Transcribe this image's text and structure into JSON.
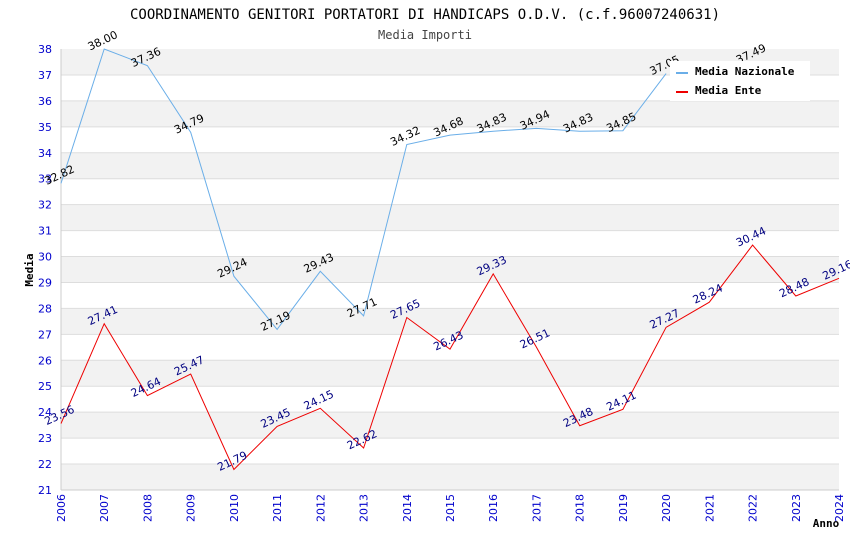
{
  "chart_data": {
    "type": "line",
    "title": "COORDINAMENTO GENITORI PORTATORI DI HANDICAPS O.D.V. (c.f.96007240631)",
    "subtitle": "Media Importi",
    "xlabel": "Anno",
    "ylabel": "Media",
    "ylim": [
      21,
      38
    ],
    "yticks": [
      "21",
      "22",
      "23",
      "24",
      "25",
      "26",
      "27",
      "28",
      "29",
      "30",
      "31",
      "32",
      "33",
      "34",
      "35",
      "36",
      "37",
      "38"
    ],
    "x": [
      "2006",
      "2007",
      "2008",
      "2009",
      "2010",
      "2011",
      "2012",
      "2013",
      "2014",
      "2015",
      "2016",
      "2017",
      "2018",
      "2019",
      "2020",
      "2021",
      "2022",
      "2023",
      "2024"
    ],
    "grid": "horizontal bands",
    "legend_position": "top-right",
    "series": [
      {
        "name": "Media Nazionale",
        "color": "#6aaee8",
        "label_color": "#000000",
        "values": [
          32.82,
          38.0,
          37.36,
          34.79,
          29.24,
          27.19,
          29.43,
          27.71,
          34.32,
          34.68,
          34.83,
          34.94,
          34.83,
          34.85,
          37.05,
          null,
          37.49,
          null,
          null
        ],
        "labels": [
          "32.82",
          "38.00",
          "37.36",
          "34.79",
          "29.24",
          "27.19",
          "29.43",
          "27.71",
          "34.32",
          "34.68",
          "34.83",
          "34.94",
          "34.83",
          "34.85",
          "37.05",
          "",
          "37.49",
          "",
          ""
        ]
      },
      {
        "name": "Media Ente",
        "color": "#ee0000",
        "label_color": "#000080",
        "values": [
          23.56,
          27.41,
          24.64,
          25.47,
          21.79,
          23.45,
          24.15,
          22.62,
          27.65,
          26.43,
          29.33,
          26.51,
          23.48,
          24.11,
          27.27,
          28.24,
          30.44,
          28.48,
          29.16
        ],
        "labels": [
          "23.56",
          "27.41",
          "24.64",
          "25.47",
          "21.79",
          "23.45",
          "24.15",
          "22.62",
          "27.65",
          "26.43",
          "29.33",
          "26.51",
          "23.48",
          "24.11",
          "27.27",
          "28.24",
          "30.44",
          "28.48",
          "29.16"
        ]
      }
    ]
  }
}
